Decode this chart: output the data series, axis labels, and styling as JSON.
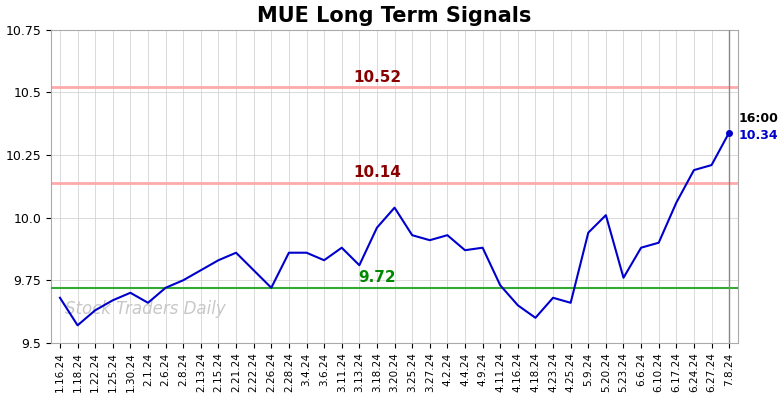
{
  "title": "MUE Long Term Signals",
  "xlabels": [
    "1.16.24",
    "1.18.24",
    "1.22.24",
    "1.25.24",
    "1.30.24",
    "2.1.24",
    "2.6.24",
    "2.8.24",
    "2.13.24",
    "2.15.24",
    "2.21.24",
    "2.22.24",
    "2.26.24",
    "2.28.24",
    "3.4.24",
    "3.6.24",
    "3.11.24",
    "3.13.24",
    "3.18.24",
    "3.20.24",
    "3.25.24",
    "3.27.24",
    "4.2.24",
    "4.4.24",
    "4.9.24",
    "4.11.24",
    "4.16.24",
    "4.18.24",
    "4.23.24",
    "4.25.24",
    "5.9.24",
    "5.20.24",
    "5.23.24",
    "6.6.24",
    "6.10.24",
    "6.17.24",
    "6.24.24",
    "6.27.24",
    "7.8.24"
  ],
  "yvalues": [
    9.68,
    9.57,
    9.63,
    9.67,
    9.7,
    9.66,
    9.72,
    9.75,
    9.79,
    9.83,
    9.86,
    9.79,
    9.72,
    9.86,
    9.86,
    9.83,
    9.88,
    9.81,
    9.96,
    10.04,
    9.93,
    9.91,
    9.93,
    9.87,
    9.88,
    9.73,
    9.65,
    9.6,
    9.68,
    9.66,
    9.94,
    10.01,
    9.76,
    9.88,
    9.9,
    10.06,
    10.19,
    10.21,
    10.34
  ],
  "hline_green": 9.72,
  "hline_green_label": "9.72",
  "hline_red1": 10.14,
  "hline_red1_label": "10.14",
  "hline_red2": 10.52,
  "hline_red2_label": "10.52",
  "last_time_label": "16:00",
  "last_price_label": "10.34",
  "watermark": "Stock Traders Daily",
  "ylim": [
    9.5,
    10.75
  ],
  "yticks": [
    9.5,
    9.75,
    10.0,
    10.25,
    10.5,
    10.75
  ],
  "line_color": "#0000cc",
  "hline_green_color": "#33aa33",
  "hline_red_color": "#ffaaaa",
  "hline_red_label_color": "#880000",
  "hline_green_label_color": "#008800",
  "last_time_color": "#000000",
  "last_price_color": "#0000cc",
  "watermark_color": "#c8c8c8",
  "background_color": "#ffffff",
  "grid_color": "#cccccc",
  "title_fontsize": 15,
  "tick_label_fontsize": 7.5,
  "annotation_fontsize": 11,
  "last_label_fontsize": 9,
  "watermark_fontsize": 12
}
